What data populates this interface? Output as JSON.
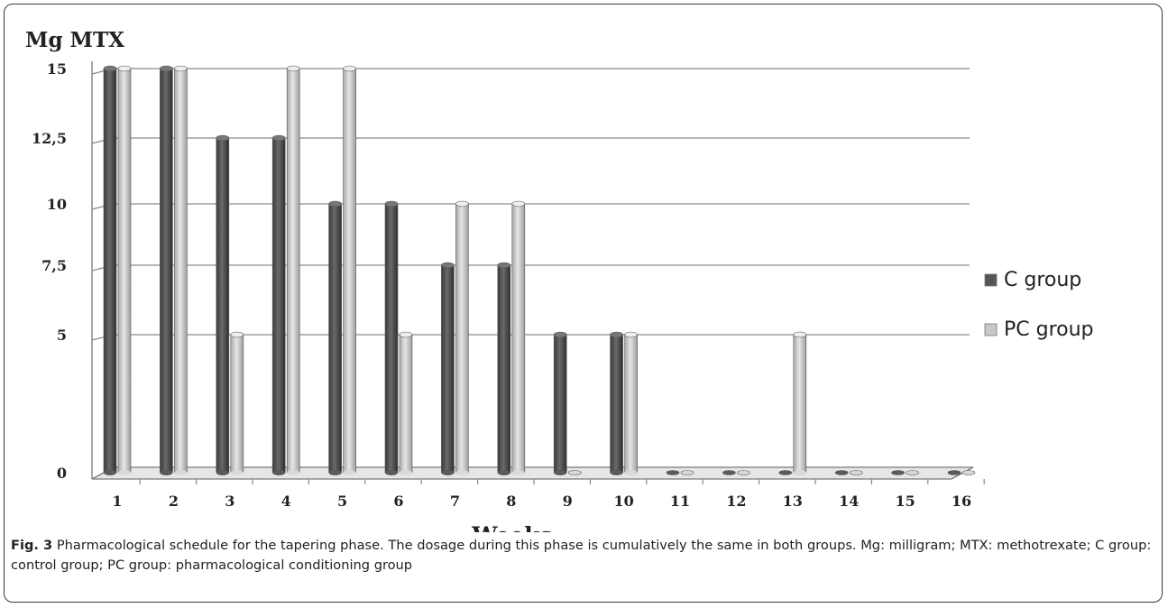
{
  "chart_data": {
    "type": "bar",
    "ylabel": "Mg MTX",
    "xlabel": "Weeks",
    "categories": [
      "1",
      "2",
      "3",
      "4",
      "5",
      "6",
      "7",
      "8",
      "9",
      "10",
      "11",
      "12",
      "13",
      "14",
      "15",
      "16"
    ],
    "yticks": [
      "0",
      "5",
      "7,5",
      "10",
      "12,5",
      "15"
    ],
    "ytick_values": [
      0,
      5,
      7.5,
      10,
      12.5,
      15
    ],
    "y_scale": "irregular (7.5–15 band equally spaced; 0–5 band ~2.8x taller)",
    "ylim": [
      0,
      15
    ],
    "grid": true,
    "legend_position": "right",
    "series": [
      {
        "name": "C group",
        "color": "#555555",
        "values": [
          15,
          15,
          12.5,
          12.5,
          10,
          10,
          7.5,
          7.5,
          5,
          5,
          0,
          0,
          0,
          0,
          0,
          0
        ]
      },
      {
        "name": "PC group",
        "color": "#c8c8c8",
        "values": [
          15,
          15,
          5,
          15,
          15,
          5,
          10,
          10,
          0,
          5,
          0,
          0,
          5,
          0,
          0,
          0
        ]
      }
    ]
  },
  "caption": {
    "label": "Fig. 3",
    "text": " Pharmacological schedule for the tapering phase. The dosage during this phase is cumulatively the same in both groups. Mg: milligram; MTX: methotrexate; C group: control group; PC group: pharmacological conditioning group"
  }
}
